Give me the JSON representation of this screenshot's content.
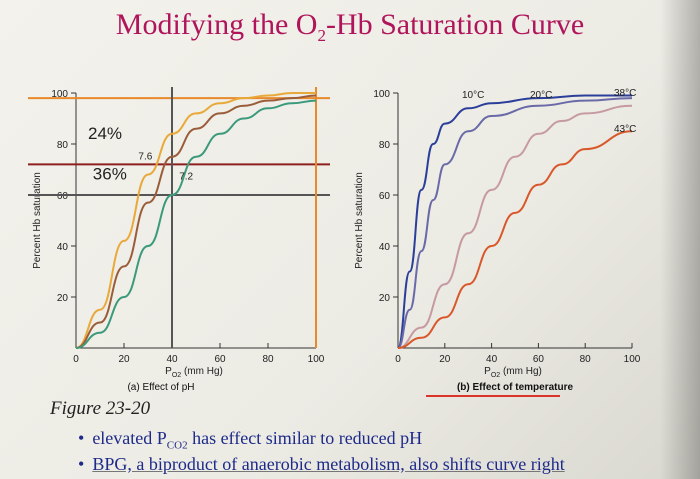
{
  "title": {
    "main": "Modifying the O",
    "sub": "2",
    "tail": "-Hb Saturation Curve"
  },
  "figure_caption": "Figure 23-20",
  "bullets": [
    {
      "pre": "elevated P",
      "sub": "CO2",
      "post": " has effect similar to reduced pH"
    },
    {
      "text": "BPG, a biproduct of anaerobic metabolism, also shifts curve right"
    }
  ],
  "colors": {
    "title": "#b0145a",
    "bullet": "#1d2a8a",
    "orange_line": "#e8892b",
    "red_line": "#8e1f1f",
    "panel_b_underline": "#d9352a"
  },
  "chart_data": [
    {
      "type": "line",
      "title": "(a) Effect of pH",
      "xlabel": "PO2 (mm Hg)",
      "ylabel": "Percent Hb saturation",
      "xlim": [
        0,
        100
      ],
      "ylim": [
        0,
        100
      ],
      "xticks": [
        0,
        20,
        40,
        60,
        80,
        100
      ],
      "yticks": [
        20,
        40,
        60,
        80,
        100
      ],
      "series": [
        {
          "name": "7.6",
          "color": "#e9a93a",
          "x": [
            0,
            10,
            20,
            30,
            40,
            50,
            60,
            70,
            80,
            90,
            100
          ],
          "y": [
            0,
            15,
            42,
            68,
            84,
            92,
            96,
            98,
            99,
            100,
            100
          ]
        },
        {
          "name": "",
          "color": "#9a5d3a",
          "x": [
            0,
            10,
            20,
            30,
            40,
            50,
            60,
            70,
            80,
            90,
            100
          ],
          "y": [
            0,
            10,
            32,
            57,
            75,
            86,
            92,
            95,
            97,
            98,
            99
          ]
        },
        {
          "name": "7.2",
          "color": "#3c9a7c",
          "x": [
            0,
            10,
            20,
            30,
            40,
            50,
            60,
            70,
            80,
            90,
            100
          ],
          "y": [
            0,
            6,
            20,
            40,
            60,
            75,
            84,
            90,
            94,
            96,
            97
          ]
        }
      ],
      "reference_lines": [
        {
          "orientation": "horizontal",
          "value": 98,
          "color": "#e8892b"
        },
        {
          "orientation": "horizontal",
          "value": 72,
          "color": "#8e1f1f"
        },
        {
          "orientation": "horizontal",
          "value": 60,
          "color": "#555555"
        },
        {
          "orientation": "vertical",
          "value": 40,
          "color": "#555555"
        },
        {
          "orientation": "vertical",
          "value": 100,
          "color": "#e8892b"
        }
      ],
      "annotations": [
        {
          "text": "24%",
          "x": 5,
          "y": 82
        },
        {
          "text": "36%",
          "x": 7,
          "y": 66
        },
        {
          "text": "7.6",
          "x": 26,
          "y": 74
        },
        {
          "text": "7.2",
          "x": 43,
          "y": 66
        }
      ]
    },
    {
      "type": "line",
      "title": "(b) Effect of temperature",
      "xlabel": "PO2 (mm Hg)",
      "ylabel": "Percent Hb saturation",
      "xlim": [
        0,
        100
      ],
      "ylim": [
        0,
        100
      ],
      "xticks": [
        0,
        20,
        40,
        60,
        80,
        100
      ],
      "yticks": [
        20,
        40,
        60,
        80,
        100
      ],
      "series": [
        {
          "name": "10°C",
          "color": "#2b3f9a",
          "x": [
            0,
            5,
            10,
            15,
            20,
            30,
            40,
            60,
            80,
            100
          ],
          "y": [
            0,
            30,
            62,
            80,
            88,
            94,
            96,
            98,
            99,
            99
          ]
        },
        {
          "name": "20°C",
          "color": "#6a6aa8",
          "x": [
            0,
            5,
            10,
            15,
            20,
            30,
            40,
            60,
            80,
            100
          ],
          "y": [
            0,
            15,
            38,
            58,
            72,
            85,
            91,
            95,
            97,
            98
          ]
        },
        {
          "name": "38°C",
          "color": "#c69aa0",
          "x": [
            0,
            10,
            20,
            30,
            40,
            50,
            60,
            70,
            80,
            100
          ],
          "y": [
            0,
            8,
            25,
            45,
            62,
            75,
            84,
            89,
            92,
            95
          ]
        },
        {
          "name": "43°C",
          "color": "#d9572a",
          "x": [
            0,
            10,
            20,
            30,
            40,
            50,
            60,
            70,
            80,
            100
          ],
          "y": [
            0,
            4,
            12,
            25,
            40,
            53,
            64,
            72,
            78,
            85
          ]
        }
      ],
      "annotations": [
        {
          "text": "10°C",
          "series": "10°C"
        },
        {
          "text": "20°C",
          "series": "20°C"
        },
        {
          "text": "38°C",
          "series": "38°C"
        },
        {
          "text": "43°C",
          "series": "43°C"
        }
      ]
    }
  ]
}
